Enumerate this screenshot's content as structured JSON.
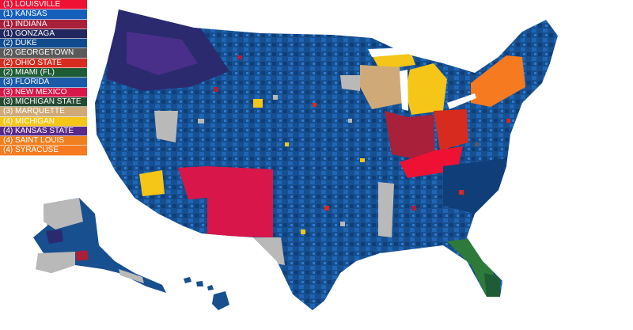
{
  "legend": {
    "items": [
      {
        "label": "(1) LOUISVILLE",
        "color": "#ee1133"
      },
      {
        "label": "(1) KANSAS",
        "color": "#1560bd"
      },
      {
        "label": "(1) INDIANA",
        "color": "#a8203a"
      },
      {
        "label": "(1) GONZAGA",
        "color": "#20285e"
      },
      {
        "label": "(2) DUKE",
        "color": "#104b8e"
      },
      {
        "label": "(2) GEORGETOWN",
        "color": "#5a5a5a"
      },
      {
        "label": "(2) OHIO STATE",
        "color": "#d62b1e"
      },
      {
        "label": "(2) MIAMI (FL)",
        "color": "#1e5c36"
      },
      {
        "label": "(3) FLORIDA",
        "color": "#1a5aa8"
      },
      {
        "label": "(3) NEW MEXICO",
        "color": "#d8164a"
      },
      {
        "label": "(3) MICHIGAN STATE",
        "color": "#254a32"
      },
      {
        "label": "(3) MARQUETTE",
        "color": "#cfaa78"
      },
      {
        "label": "(4) MICHIGAN",
        "color": "#f5c518"
      },
      {
        "label": "(4) KANSAS STATE",
        "color": "#5a2a8a"
      },
      {
        "label": "(4) SAINT LOUIS",
        "color": "#f07f1e"
      },
      {
        "label": "(4) SYRACUSE",
        "color": "#f57a20"
      }
    ]
  }
}
